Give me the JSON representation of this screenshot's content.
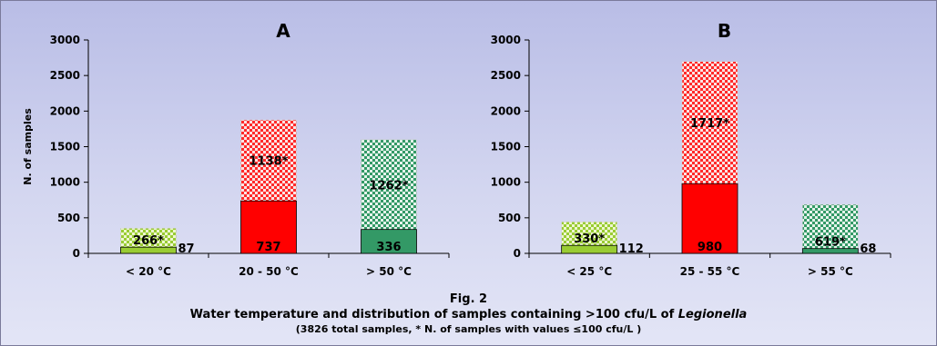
{
  "figure": {
    "label": "Fig. 2",
    "title_prefix": "Water temperature and distribution of samples containing >100 cfu/L of ",
    "title_italic": "Legionella",
    "note": "(3826 total samples, * N. of samples with values ≤100 cfu/L )"
  },
  "colors": {
    "panel_a_lower": [
      "#99cc33",
      "#ff0000",
      "#339966"
    ],
    "panel_b_lower": [
      "#99cc33",
      "#ff0000",
      "#339966"
    ]
  },
  "chart_data": [
    {
      "type": "bar",
      "stacked": true,
      "title": "A",
      "ylabel": "N. of samples",
      "ylim": [
        0,
        3000
      ],
      "yticks": [
        "0",
        "500",
        "1000",
        "1500",
        "2000",
        "2500",
        "3000"
      ],
      "categories": [
        "< 20 °C",
        "20 - 50 °C",
        "> 50 °C"
      ],
      "series": [
        {
          "values": [
            87,
            737,
            336
          ],
          "labels": [
            "87",
            "737",
            "336"
          ]
        },
        {
          "values": [
            266,
            1138,
            1262
          ],
          "labels": [
            "266*",
            "1138*",
            "1262*"
          ]
        }
      ]
    },
    {
      "type": "bar",
      "stacked": true,
      "title": "B",
      "ylabel": "",
      "ylim": [
        0,
        3000
      ],
      "yticks": [
        "0",
        "500",
        "1000",
        "1500",
        "2000",
        "2500",
        "3000"
      ],
      "categories": [
        "< 25 °C",
        "25 - 55 °C",
        "> 55 °C"
      ],
      "series": [
        {
          "values": [
            112,
            980,
            68
          ],
          "labels": [
            "112",
            "980",
            "68"
          ]
        },
        {
          "values": [
            330,
            1717,
            619
          ],
          "labels": [
            "330*",
            "1717*",
            "619*"
          ]
        }
      ]
    }
  ]
}
